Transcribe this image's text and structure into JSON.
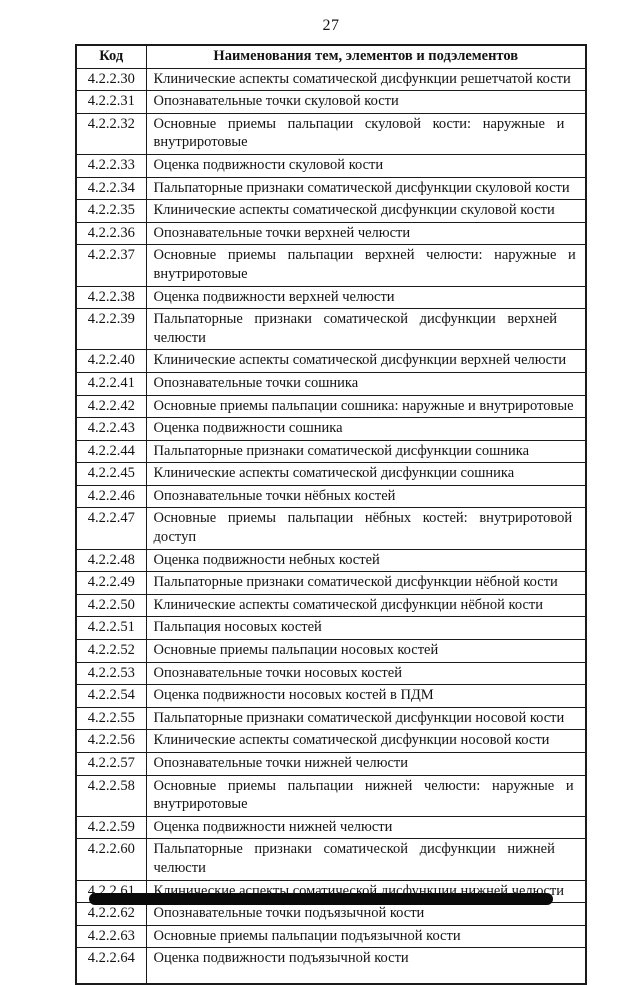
{
  "page": {
    "number": "27"
  },
  "table": {
    "headers": {
      "code": "Код",
      "name": "Наименования тем, элементов и подэлементов"
    },
    "rows": [
      {
        "code": "4.2.2.30",
        "lines": [
          "Клинические аспекты соматической дисфункции решетчатой кости"
        ]
      },
      {
        "code": "4.2.2.31",
        "lines": [
          "Опознавательные точки скуловой кости"
        ]
      },
      {
        "code": "4.2.2.32",
        "lines": [
          "Основные приемы пальпации скуловой кости: наружные и",
          "внутриротовые"
        ]
      },
      {
        "code": "4.2.2.33",
        "lines": [
          "Оценка подвижности скуловой кости"
        ]
      },
      {
        "code": "4.2.2.34",
        "lines": [
          "Пальпаторные признаки соматической дисфункции скуловой кости"
        ]
      },
      {
        "code": "4.2.2.35",
        "lines": [
          "Клинические аспекты соматической дисфункции скуловой кости"
        ]
      },
      {
        "code": "4.2.2.36",
        "lines": [
          "Опознавательные точки верхней челюсти"
        ]
      },
      {
        "code": "4.2.2.37",
        "lines": [
          "Основные приемы пальпации верхней челюсти: наружные и",
          "внутриротовые"
        ]
      },
      {
        "code": "4.2.2.38",
        "lines": [
          "Оценка подвижности верхней челюсти"
        ]
      },
      {
        "code": "4.2.2.39",
        "lines": [
          "Пальпаторные признаки соматической дисфункции верхней",
          "челюсти"
        ]
      },
      {
        "code": "4.2.2.40",
        "lines": [
          "Клинические аспекты соматической дисфункции верхней челюсти"
        ]
      },
      {
        "code": "4.2.2.41",
        "lines": [
          "Опознавательные точки сошника"
        ]
      },
      {
        "code": "4.2.2.42",
        "lines": [
          "Основные приемы пальпации сошника: наружные и внутриротовые"
        ]
      },
      {
        "code": "4.2.2.43",
        "lines": [
          "Оценка подвижности сошника"
        ]
      },
      {
        "code": "4.2.2.44",
        "lines": [
          "Пальпаторные признаки соматической дисфункции сошника"
        ]
      },
      {
        "code": "4.2.2.45",
        "lines": [
          "Клинические аспекты соматической дисфункции сошника"
        ]
      },
      {
        "code": "4.2.2.46",
        "lines": [
          "Опознавательные точки нёбных костей"
        ]
      },
      {
        "code": "4.2.2.47",
        "lines": [
          "Основные приемы пальпации нёбных костей: внутриротовой",
          "доступ"
        ]
      },
      {
        "code": "4.2.2.48",
        "lines": [
          "Оценка подвижности небных костей"
        ]
      },
      {
        "code": "4.2.2.49",
        "lines": [
          "Пальпаторные признаки соматической дисфункции нёбной кости"
        ]
      },
      {
        "code": "4.2.2.50",
        "lines": [
          "Клинические аспекты соматической дисфункции нёбной кости"
        ]
      },
      {
        "code": "4.2.2.51",
        "lines": [
          "Пальпация носовых костей"
        ]
      },
      {
        "code": "4.2.2.52",
        "lines": [
          "Основные приемы пальпации носовых костей"
        ]
      },
      {
        "code": "4.2.2.53",
        "lines": [
          "Опознавательные точки носовых костей"
        ]
      },
      {
        "code": "4.2.2.54",
        "lines": [
          "Оценка подвижности носовых костей в ПДМ"
        ]
      },
      {
        "code": "4.2.2.55",
        "lines": [
          "Пальпаторные признаки соматической дисфункции носовой кости"
        ]
      },
      {
        "code": "4.2.2.56",
        "lines": [
          "Клинические аспекты соматической дисфункции носовой кости"
        ]
      },
      {
        "code": "4.2.2.57",
        "lines": [
          "Опознавательные точки нижней челюсти"
        ]
      },
      {
        "code": "4.2.2.58",
        "lines": [
          "Основные приемы пальпации нижней челюсти: наружные и",
          "внутриротовые"
        ]
      },
      {
        "code": "4.2.2.59",
        "lines": [
          "Оценка подвижности нижней челюсти"
        ]
      },
      {
        "code": "4.2.2.60",
        "lines": [
          "Пальпаторные признаки соматической дисфункции нижней",
          "челюсти"
        ]
      },
      {
        "code": "4.2.2.61",
        "lines": [
          "Клинические аспекты соматической дисфункции нижней челюсти"
        ]
      },
      {
        "code": "4.2.2.62",
        "lines": [
          "Опознавательные точки подъязычной кости"
        ]
      },
      {
        "code": "4.2.2.63",
        "lines": [
          "Основные приемы пальпации подъязычной кости"
        ]
      },
      {
        "code": "4.2.2.64",
        "lines": [
          "Оценка подвижности подъязычной кости"
        ],
        "tall": true
      }
    ]
  }
}
